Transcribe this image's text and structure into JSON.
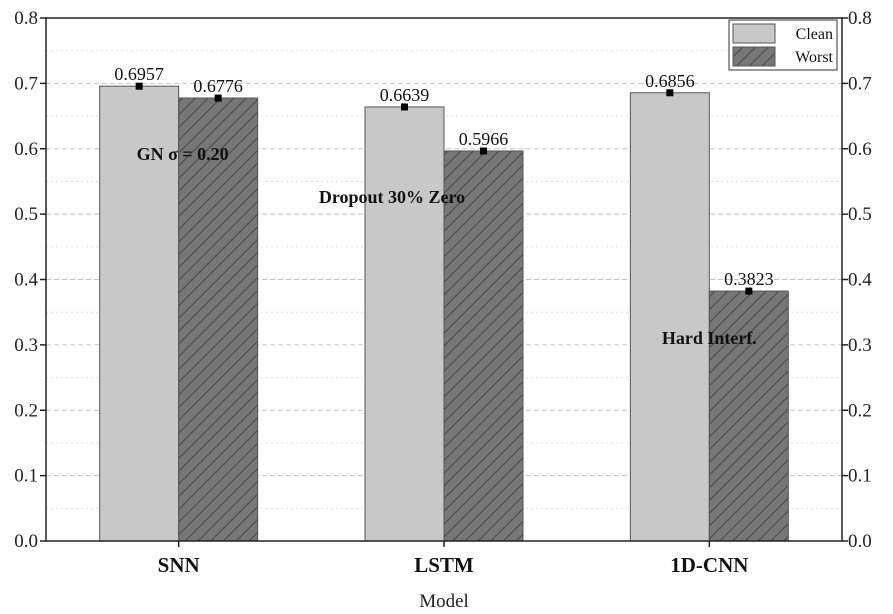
{
  "chart_data": {
    "type": "bar",
    "categories": [
      "SNN",
      "LSTM",
      "1D-CNN"
    ],
    "series": [
      {
        "name": "Clean",
        "values": [
          0.6957,
          0.6639,
          0.6856
        ],
        "labels": [
          "0.6957",
          "0.6639",
          "0.6856"
        ],
        "color": "#c8c8c8"
      },
      {
        "name": "Worst",
        "values": [
          0.6776,
          0.5966,
          0.3823
        ],
        "labels": [
          "0.6776",
          "0.5966",
          "0.3823"
        ],
        "color": "#777777"
      }
    ],
    "annotations": [
      {
        "text": "GN σ = 0.20",
        "category": "SNN"
      },
      {
        "text": "Dropout 30% Zero",
        "category": "LSTM"
      },
      {
        "text": "Hard Interf.",
        "category": "1D-CNN"
      }
    ],
    "xlabel": "Model",
    "ylabel": "",
    "ylim": [
      0,
      0.8
    ],
    "yticks": [
      "0.0",
      "0.1",
      "0.2",
      "0.3",
      "0.4",
      "0.5",
      "0.6",
      "0.7",
      "0.8"
    ],
    "grid": true,
    "legend": "top-right"
  }
}
